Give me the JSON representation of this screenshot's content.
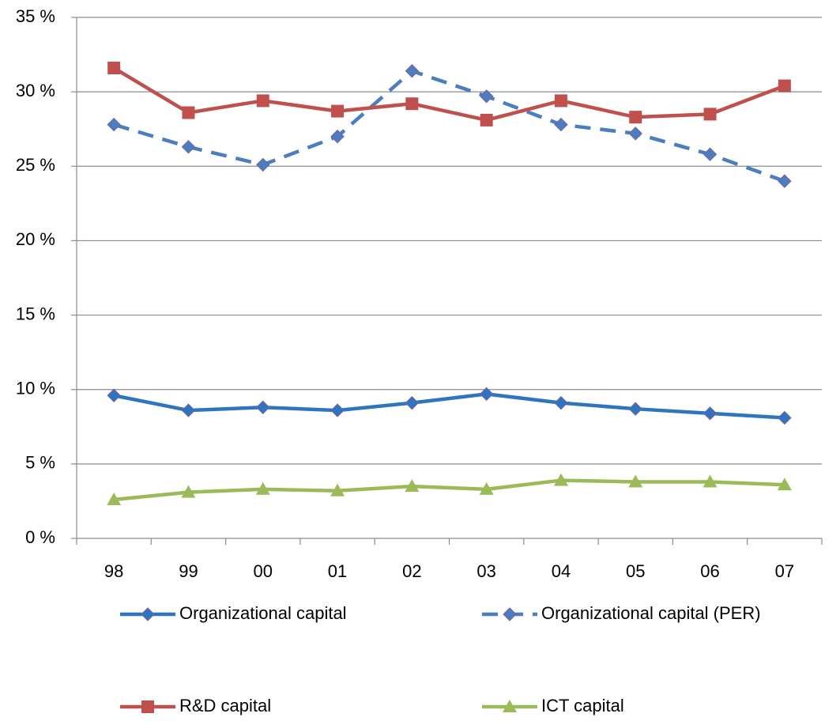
{
  "chart_data": {
    "type": "line",
    "categories": [
      "98",
      "99",
      "00",
      "01",
      "02",
      "03",
      "04",
      "05",
      "06",
      "07"
    ],
    "series": [
      {
        "name": "Organizational capital",
        "color": "#2e75c0",
        "marker": "diamond",
        "dashed": false,
        "values": [
          9.6,
          8.6,
          8.8,
          8.6,
          9.1,
          9.7,
          9.1,
          8.7,
          8.4,
          8.1
        ]
      },
      {
        "name": "Organizational capital (PER)",
        "color": "#4a7ebf",
        "marker": "diamond",
        "dashed": true,
        "values": [
          27.8,
          26.3,
          25.1,
          27.0,
          31.4,
          29.7,
          27.8,
          27.2,
          25.8,
          24.0
        ]
      },
      {
        "name": "R&D capital",
        "color": "#c0504d",
        "marker": "square",
        "dashed": false,
        "values": [
          31.6,
          28.6,
          29.4,
          28.7,
          29.2,
          28.1,
          29.4,
          28.3,
          28.5,
          30.4
        ]
      },
      {
        "name": "ICT capital",
        "color": "#9bbb59",
        "marker": "triangle",
        "dashed": false,
        "values": [
          2.6,
          3.1,
          3.3,
          3.2,
          3.5,
          3.3,
          3.9,
          3.8,
          3.8,
          3.6
        ]
      }
    ],
    "ylim": [
      0,
      35
    ],
    "yticks": [
      {
        "value": 0,
        "label": "0 %"
      },
      {
        "value": 5,
        "label": "5 %"
      },
      {
        "value": 10,
        "label": "10 %"
      },
      {
        "value": 15,
        "label": "15 %"
      },
      {
        "value": 20,
        "label": "20 %"
      },
      {
        "value": 25,
        "label": "25 %"
      },
      {
        "value": 30,
        "label": "30 %"
      },
      {
        "value": 35,
        "label": "35 %"
      }
    ],
    "grid": true
  }
}
